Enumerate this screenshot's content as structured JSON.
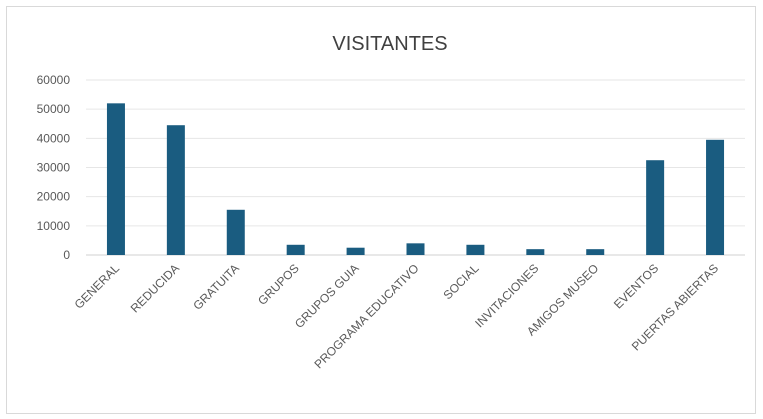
{
  "chart_data": {
    "type": "bar",
    "title": "VISITANTES",
    "xlabel": "",
    "ylabel": "",
    "categories": [
      "GENERAL",
      "REDUCIDA",
      "GRATUITA",
      "GRUPOS",
      "GRUPOS GUIA",
      "PROGRAMA EDUCATIVO",
      "SOCIAL",
      "INVITACIONES",
      "AMIGOS MUSEO",
      "EVENTOS",
      "PUERTAS ABIERTAS"
    ],
    "values": [
      52000,
      44500,
      15500,
      3500,
      2500,
      4000,
      3500,
      2000,
      2000,
      32500,
      39500
    ],
    "ylim": [
      0,
      60000
    ],
    "yticks": [
      "0",
      "10000",
      "20000",
      "30000",
      "40000",
      "50000",
      "60000"
    ],
    "grid": true,
    "legend": "none",
    "bar_color": "#1a5c80"
  }
}
